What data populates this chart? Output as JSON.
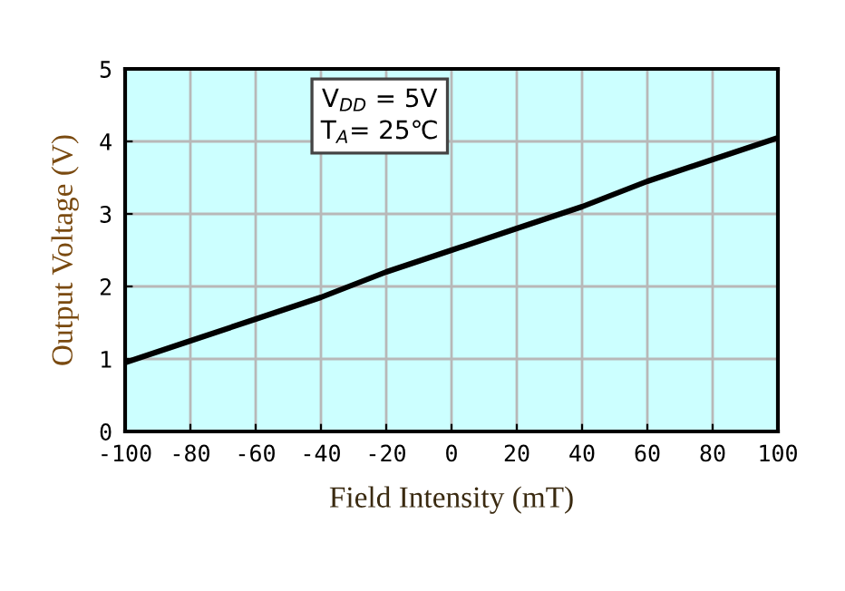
{
  "chart_data": {
    "type": "line",
    "xlabel": "Field Intensity (mT)",
    "ylabel": "Output Voltage (V)",
    "annotations": [
      "V$_{DD}$ = 5V",
      "T$_{A}$= 25℃"
    ],
    "x": [
      -100,
      -80,
      -60,
      -40,
      -20,
      0,
      20,
      40,
      60,
      80,
      100
    ],
    "series": [
      {
        "color": "#000000",
        "values": [
          0.95,
          1.25,
          1.55,
          1.85,
          2.2,
          2.5,
          2.8,
          3.1,
          3.45,
          3.75,
          4.05
        ]
      }
    ],
    "xlim": [
      -100,
      100
    ],
    "xticks": [
      -100,
      -80,
      -60,
      -40,
      -20,
      0,
      20,
      40,
      60,
      80,
      100
    ],
    "ylim": [
      0,
      5
    ],
    "yticks": [
      0,
      1,
      2,
      3,
      4,
      5
    ],
    "grid": true,
    "marker": "none",
    "line_style": "solid"
  }
}
